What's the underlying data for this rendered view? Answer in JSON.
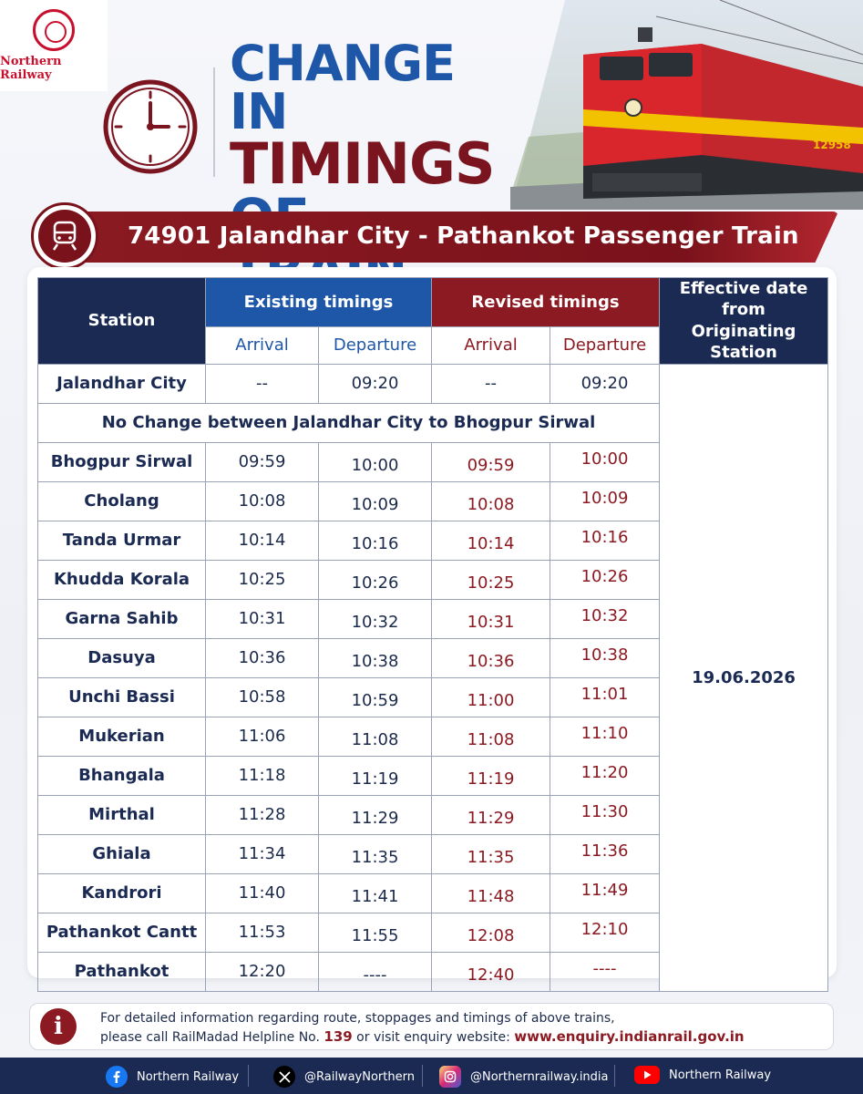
{
  "header": {
    "logo_text": "Northern Railway",
    "headline_line1": "CHANGE IN",
    "headline_line2": "TIMINGS",
    "headline_line3": "OF TRAIN",
    "loco_number": "12958"
  },
  "banner": {
    "title": "74901  Jalandhar City - Pathankot Passenger Train"
  },
  "table": {
    "headers": {
      "station": "Station",
      "existing": "Existing timings",
      "revised": "Revised timings",
      "effective_line1": "Effective date from",
      "effective_line2": "Originating Station",
      "arrival": "Arrival",
      "departure": "Departure"
    },
    "first_row": {
      "station": "Jalandhar City",
      "ex_arr": "--",
      "ex_dep": "09:20",
      "rv_arr": "--",
      "rv_dep": "09:20"
    },
    "no_change_note": "No Change between Jalandhar City to Bhogpur Sirwal",
    "effective_date": "19.06.2026",
    "rows": [
      {
        "station": "Bhogpur Sirwal",
        "ex_arr": "09:59",
        "ex_dep": "10:00",
        "rv_arr": "09:59",
        "rv_dep": "10:00"
      },
      {
        "station": "Cholang",
        "ex_arr": "10:08",
        "ex_dep": "10:09",
        "rv_arr": "10:08",
        "rv_dep": "10:09"
      },
      {
        "station": "Tanda Urmar",
        "ex_arr": "10:14",
        "ex_dep": "10:16",
        "rv_arr": "10:14",
        "rv_dep": "10:16"
      },
      {
        "station": "Khudda Korala",
        "ex_arr": "10:25",
        "ex_dep": "10:26",
        "rv_arr": "10:25",
        "rv_dep": "10:26"
      },
      {
        "station": "Garna Sahib",
        "ex_arr": "10:31",
        "ex_dep": "10:32",
        "rv_arr": "10:31",
        "rv_dep": "10:32"
      },
      {
        "station": "Dasuya",
        "ex_arr": "10:36",
        "ex_dep": "10:38",
        "rv_arr": "10:36",
        "rv_dep": "10:38"
      },
      {
        "station": "Unchi Bassi",
        "ex_arr": "10:58",
        "ex_dep": "10:59",
        "rv_arr": "11:00",
        "rv_dep": "11:01"
      },
      {
        "station": "Mukerian",
        "ex_arr": "11:06",
        "ex_dep": "11:08",
        "rv_arr": "11:08",
        "rv_dep": "11:10"
      },
      {
        "station": "Bhangala",
        "ex_arr": "11:18",
        "ex_dep": "11:19",
        "rv_arr": "11:19",
        "rv_dep": "11:20"
      },
      {
        "station": "Mirthal",
        "ex_arr": "11:28",
        "ex_dep": "11:29",
        "rv_arr": "11:29",
        "rv_dep": "11:30"
      },
      {
        "station": "Ghiala",
        "ex_arr": "11:34",
        "ex_dep": "11:35",
        "rv_arr": "11:35",
        "rv_dep": "11:36"
      },
      {
        "station": "Kandrori",
        "ex_arr": "11:40",
        "ex_dep": "11:41",
        "rv_arr": "11:48",
        "rv_dep": "11:49"
      },
      {
        "station": "Pathankot Cantt",
        "ex_arr": "11:53",
        "ex_dep": "11:55",
        "rv_arr": "12:08",
        "rv_dep": "12:10"
      },
      {
        "station": "Pathankot",
        "ex_arr": "12:20",
        "ex_dep": "----",
        "rv_arr": "12:40",
        "rv_dep": "----"
      }
    ]
  },
  "info": {
    "line1": "For detailed information regarding route, stoppages and timings of above trains,",
    "line2_prefix": "please call RailMadad Helpline No. ",
    "helpline": "139",
    "line2_mid": " or visit enquiry website: ",
    "website": "www.enquiry.indianrail.gov.in",
    "icon": "info-icon"
  },
  "footer": {
    "facebook": "Northern Railway",
    "x": "@RailwayNorthern",
    "instagram": "@Northernrailway.india",
    "youtube": "Northern Railway"
  },
  "colors": {
    "navy": "#1b2a52",
    "blue": "#1f57a8",
    "maroon": "#8b1a22"
  }
}
